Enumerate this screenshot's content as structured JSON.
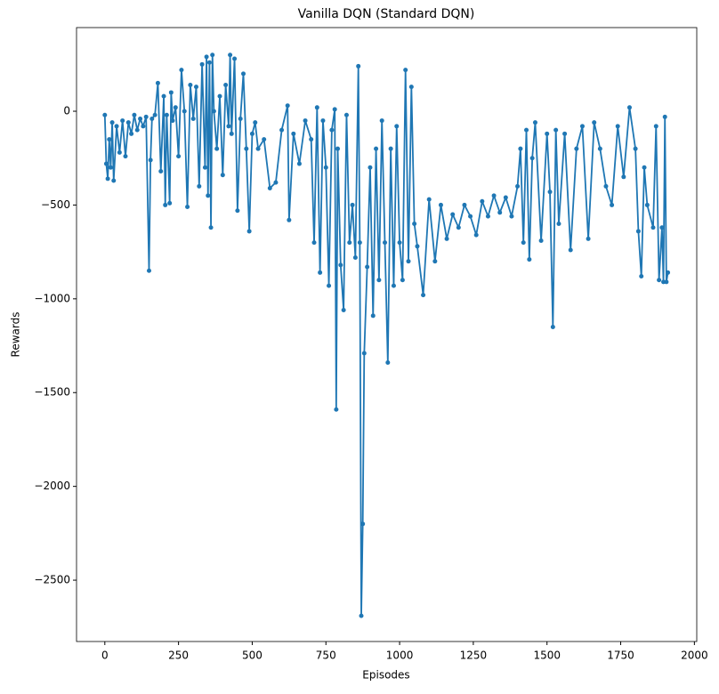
{
  "chart_data": {
    "type": "line",
    "title": "Vanilla DQN (Standard DQN)",
    "x_label": "Episodes",
    "y_label": "Rewards",
    "color": "#1f77b4",
    "grid": false,
    "xlim": [
      -96,
      2008
    ],
    "ylim": [
      -2827,
      446
    ],
    "xticks": [
      0,
      250,
      500,
      750,
      1000,
      1250,
      1500,
      1750,
      2000
    ],
    "yticks": [
      {
        "value": -2500,
        "label": "−2500"
      },
      {
        "value": -2000,
        "label": "−2000"
      },
      {
        "value": -1500,
        "label": "−1500"
      },
      {
        "value": -1000,
        "label": "−1000"
      },
      {
        "value": -500,
        "label": "−500"
      },
      0
    ],
    "x": [
      0,
      5,
      10,
      15,
      20,
      25,
      30,
      40,
      50,
      60,
      70,
      80,
      90,
      100,
      110,
      120,
      130,
      140,
      150,
      155,
      160,
      170,
      180,
      190,
      200,
      205,
      210,
      220,
      225,
      230,
      240,
      250,
      260,
      270,
      280,
      290,
      300,
      310,
      320,
      330,
      340,
      345,
      350,
      355,
      360,
      365,
      370,
      380,
      390,
      400,
      410,
      420,
      425,
      430,
      440,
      450,
      460,
      470,
      480,
      490,
      500,
      510,
      520,
      540,
      560,
      580,
      600,
      620,
      625,
      640,
      660,
      680,
      700,
      710,
      720,
      730,
      740,
      750,
      760,
      770,
      780,
      785,
      790,
      800,
      810,
      820,
      830,
      840,
      850,
      860,
      865,
      870,
      875,
      880,
      890,
      900,
      910,
      920,
      930,
      940,
      950,
      960,
      970,
      980,
      990,
      1000,
      1010,
      1020,
      1030,
      1040,
      1050,
      1060,
      1080,
      1100,
      1120,
      1140,
      1160,
      1180,
      1200,
      1220,
      1240,
      1260,
      1280,
      1300,
      1320,
      1340,
      1360,
      1380,
      1400,
      1410,
      1420,
      1430,
      1440,
      1450,
      1460,
      1480,
      1500,
      1510,
      1520,
      1530,
      1540,
      1560,
      1580,
      1600,
      1620,
      1640,
      1660,
      1680,
      1700,
      1720,
      1740,
      1760,
      1780,
      1800,
      1810,
      1820,
      1830,
      1840,
      1860,
      1870,
      1880,
      1890,
      1895,
      1900,
      1905,
      1910
    ],
    "values": [
      -20,
      -280,
      -360,
      -150,
      -300,
      -60,
      -370,
      -80,
      -220,
      -50,
      -240,
      -60,
      -120,
      -20,
      -100,
      -40,
      -80,
      -30,
      -850,
      -260,
      -40,
      -20,
      150,
      -320,
      80,
      -500,
      -20,
      -490,
      100,
      -50,
      20,
      -240,
      220,
      0,
      -510,
      140,
      -40,
      130,
      -400,
      250,
      -300,
      290,
      -450,
      260,
      -620,
      300,
      0,
      -200,
      80,
      -340,
      140,
      -80,
      300,
      -120,
      280,
      -530,
      -40,
      200,
      -200,
      -640,
      -120,
      -60,
      -200,
      -150,
      -410,
      -380,
      -100,
      30,
      -580,
      -120,
      -280,
      -50,
      -150,
      -700,
      20,
      -860,
      -50,
      -300,
      -930,
      -100,
      10,
      -1590,
      -200,
      -820,
      -1060,
      -20,
      -700,
      -500,
      -780,
      240,
      -700,
      -2690,
      -2200,
      -1290,
      -830,
      -300,
      -1090,
      -200,
      -900,
      -50,
      -700,
      -1340,
      -200,
      -930,
      -80,
      -700,
      -900,
      220,
      -800,
      130,
      -600,
      -720,
      -980,
      -470,
      -800,
      -500,
      -680,
      -550,
      -620,
      -500,
      -560,
      -660,
      -480,
      -560,
      -450,
      -540,
      -460,
      -560,
      -400,
      -200,
      -700,
      -100,
      -790,
      -250,
      -60,
      -690,
      -120,
      -430,
      -1150,
      -100,
      -600,
      -120,
      -740,
      -200,
      -80,
      -680,
      -60,
      -200,
      -400,
      -500,
      -80,
      -350,
      20,
      -200,
      -640,
      -880,
      -300,
      -500,
      -620,
      -80,
      -900,
      -620,
      -910,
      -30,
      -910,
      -860
    ]
  }
}
